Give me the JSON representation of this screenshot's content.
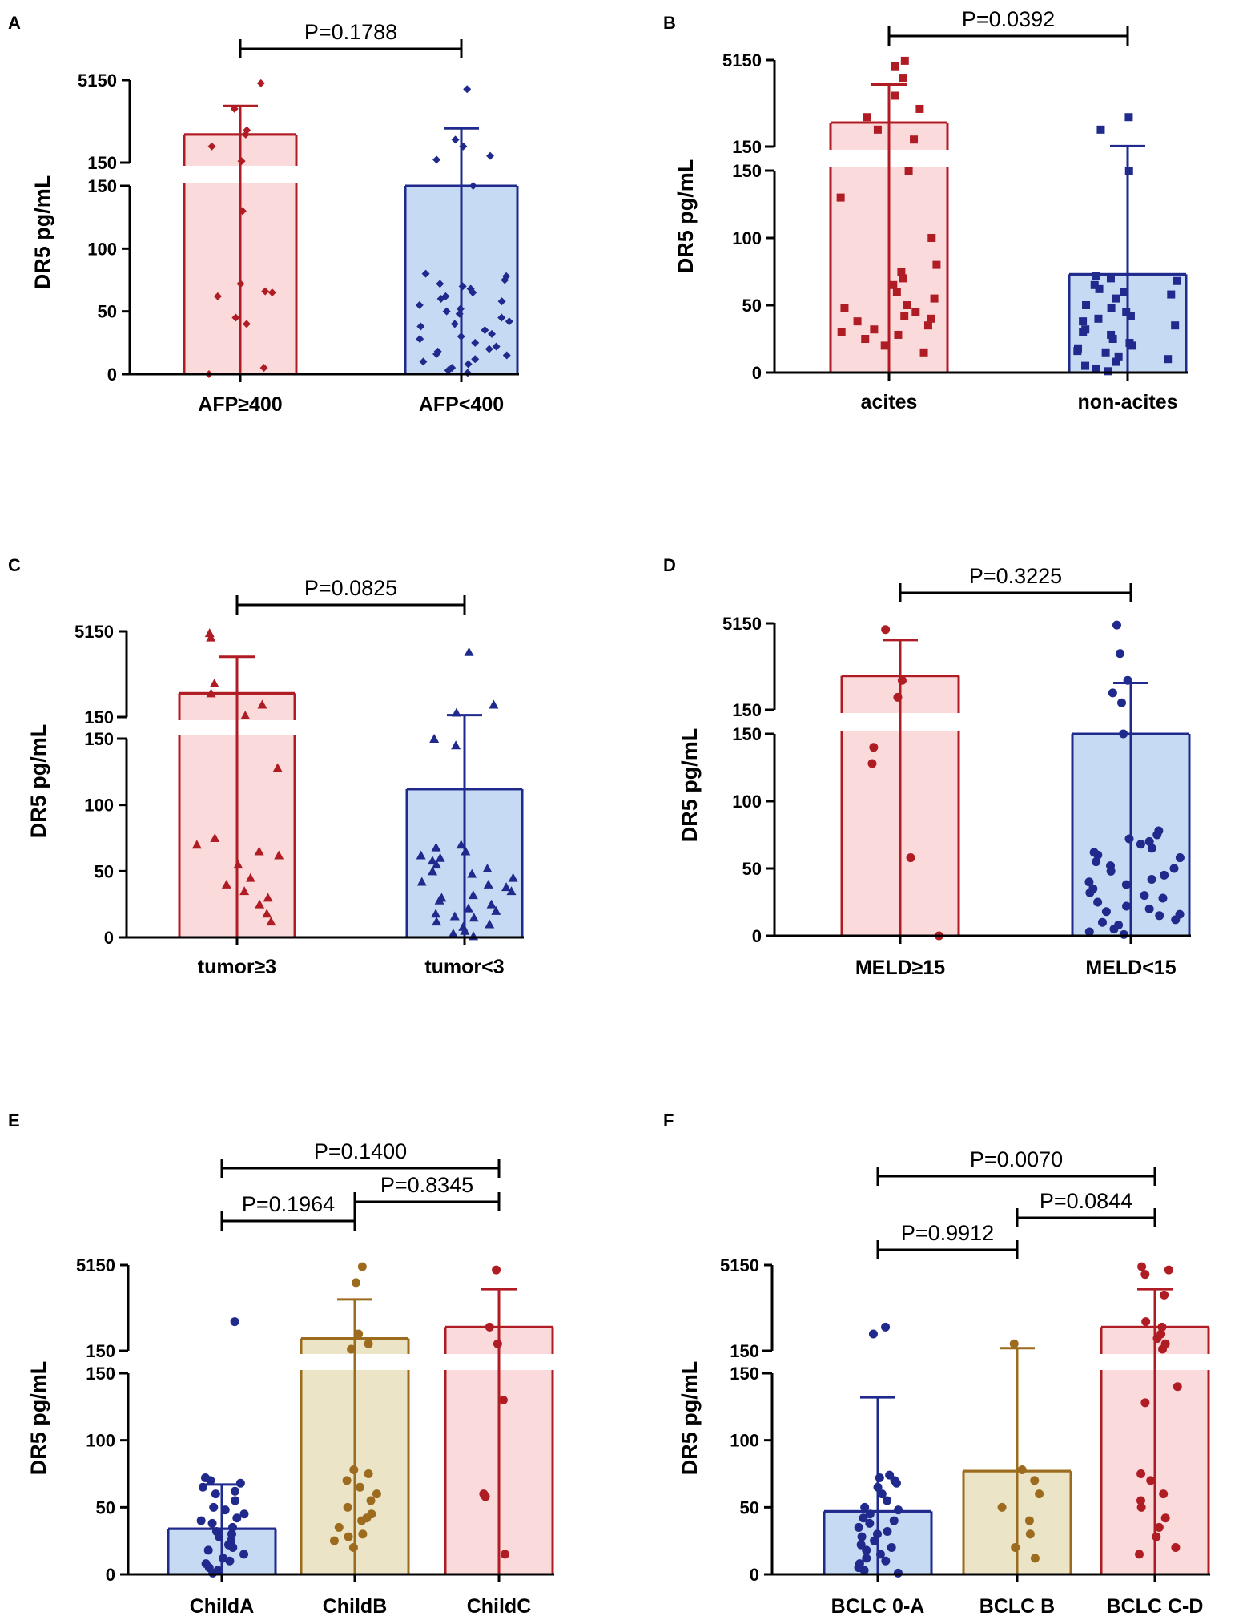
{
  "figure": {
    "y_label": "DR5 pg/mL"
  },
  "chart_data": [
    {
      "panel": "A",
      "type": "bar",
      "title": "",
      "xlabel": "",
      "ylabel": "DR5 pg/mL",
      "ylim_lower": [
        0,
        150
      ],
      "ylim_upper": [
        150,
        5150
      ],
      "y_ticks_lower": [
        "0",
        "50",
        "100",
        "150"
      ],
      "y_ticks_upper": [
        "150",
        "5150"
      ],
      "marker": "diamond",
      "categories": [
        "AFP≥400",
        "AFP<400"
      ],
      "colors": [
        "#b01c24",
        "#1f2a8c"
      ],
      "fills": [
        "#fbdadc",
        "#c6daf4"
      ],
      "means": [
        500,
        150
      ],
      "errors": [
        1200,
        500
      ],
      "points": [
        [
          0,
          5,
          40,
          45,
          62,
          65,
          66,
          72,
          130,
          160,
          300,
          500,
          600,
          1500,
          4500
        ],
        [
          1,
          3,
          5,
          8,
          10,
          12,
          15,
          16,
          18,
          20,
          22,
          25,
          28,
          30,
          32,
          35,
          38,
          40,
          42,
          45,
          48,
          50,
          52,
          55,
          58,
          60,
          62,
          65,
          68,
          70,
          72,
          75,
          78,
          80,
          150,
          170,
          200,
          300,
          400,
          3500
        ]
      ],
      "comparisons": [
        {
          "label": "P=0.1788",
          "from": 0,
          "to": 1
        }
      ]
    },
    {
      "panel": "B",
      "type": "bar",
      "title": "",
      "xlabel": "",
      "ylabel": "DR5 pg/mL",
      "ylim_lower": [
        0,
        150
      ],
      "ylim_upper": [
        150,
        5150
      ],
      "y_ticks_lower": [
        "0",
        "50",
        "100",
        "150"
      ],
      "y_ticks_upper": [
        "150",
        "5150"
      ],
      "marker": "square",
      "categories": [
        "acites",
        "non-acites"
      ],
      "colors": [
        "#b01c24",
        "#1f2a8c"
      ],
      "fills": [
        "#fbdadc",
        "#c6daf4"
      ],
      "means": [
        400,
        73
      ],
      "errors": [
        1500,
        80
      ],
      "points": [
        [
          15,
          20,
          25,
          28,
          30,
          32,
          35,
          38,
          40,
          42,
          45,
          48,
          50,
          55,
          60,
          65,
          70,
          75,
          80,
          100,
          130,
          150,
          200,
          300,
          500,
          700,
          1200,
          2500,
          4000,
          5000
        ],
        [
          1,
          3,
          5,
          8,
          10,
          12,
          15,
          16,
          18,
          20,
          22,
          25,
          28,
          30,
          32,
          35,
          38,
          40,
          42,
          45,
          48,
          50,
          55,
          58,
          60,
          62,
          65,
          68,
          70,
          72,
          150,
          300,
          500
        ]
      ],
      "comparisons": [
        {
          "label": "P=0.0392",
          "from": 0,
          "to": 1
        }
      ]
    },
    {
      "panel": "C",
      "type": "bar",
      "title": "",
      "xlabel": "",
      "ylabel": "DR5 pg/mL",
      "ylim_lower": [
        0,
        150
      ],
      "ylim_upper": [
        150,
        5150
      ],
      "y_ticks_lower": [
        "0",
        "50",
        "100",
        "150"
      ],
      "y_ticks_upper": [
        "150",
        "5150"
      ],
      "marker": "triangle",
      "categories": [
        "tumor≥3",
        "tumor<3"
      ],
      "colors": [
        "#b01c24",
        "#1f2a8c"
      ],
      "fills": [
        "#fbdadc",
        "#c6daf4"
      ],
      "means": [
        400,
        112
      ],
      "errors": [
        1400,
        50
      ],
      "points": [
        [
          12,
          18,
          25,
          30,
          35,
          40,
          45,
          55,
          62,
          65,
          70,
          75,
          128,
          160,
          250,
          400,
          600,
          4000,
          4800
        ],
        [
          1,
          3,
          5,
          8,
          10,
          12,
          15,
          16,
          18,
          20,
          22,
          25,
          28,
          30,
          32,
          35,
          38,
          40,
          42,
          45,
          48,
          50,
          52,
          55,
          58,
          60,
          62,
          65,
          68,
          70,
          145,
          150,
          180,
          250,
          2200
        ]
      ],
      "comparisons": [
        {
          "label": "P=0.0825",
          "from": 0,
          "to": 1
        }
      ]
    },
    {
      "panel": "D",
      "type": "bar",
      "title": "",
      "xlabel": "",
      "ylabel": "DR5 pg/mL",
      "ylim_lower": [
        0,
        150
      ],
      "ylim_upper": [
        150,
        5150
      ],
      "y_ticks_lower": [
        "0",
        "50",
        "100",
        "150"
      ],
      "y_ticks_upper": [
        "150",
        "5150"
      ],
      "marker": "circle",
      "categories": [
        "MELD≥15",
        "MELD<15"
      ],
      "colors": [
        "#b01c24",
        "#1f2a8c"
      ],
      "fills": [
        "#fbdadc",
        "#c6daf4"
      ],
      "means": [
        600,
        150
      ],
      "errors": [
        2000,
        300
      ],
      "points": [
        [
          0,
          58,
          128,
          140,
          250,
          500,
          4000
        ],
        [
          1,
          3,
          5,
          8,
          10,
          12,
          15,
          16,
          18,
          20,
          22,
          25,
          28,
          30,
          32,
          35,
          38,
          40,
          42,
          45,
          48,
          50,
          52,
          55,
          58,
          60,
          62,
          65,
          68,
          70,
          72,
          75,
          78,
          150,
          200,
          300,
          500,
          1500,
          4800
        ]
      ],
      "comparisons": [
        {
          "label": "P=0.3225",
          "from": 0,
          "to": 1
        }
      ]
    },
    {
      "panel": "E",
      "type": "bar",
      "title": "",
      "xlabel": "",
      "ylabel": "DR5 pg/mL",
      "ylim_lower": [
        0,
        150
      ],
      "ylim_upper": [
        150,
        5150
      ],
      "y_ticks_lower": [
        "0",
        "50",
        "100",
        "150"
      ],
      "y_ticks_upper": [
        "150",
        "5150"
      ],
      "marker": "circle",
      "categories": [
        "ChildA",
        "ChildB",
        "ChildC"
      ],
      "colors": [
        "#1f2a8c",
        "#9c6b1e",
        "#b01c24"
      ],
      "fills": [
        "#c6daf4",
        "#ece4c6",
        "#fbdadc"
      ],
      "means": [
        34,
        250,
        400
      ],
      "errors": [
        33,
        1000,
        1500
      ],
      "points": [
        [
          1,
          3,
          5,
          8,
          10,
          12,
          15,
          18,
          20,
          22,
          25,
          28,
          30,
          32,
          35,
          38,
          40,
          42,
          45,
          48,
          50,
          55,
          60,
          62,
          65,
          68,
          70,
          72,
          500
        ],
        [
          20,
          25,
          28,
          30,
          35,
          40,
          42,
          45,
          50,
          55,
          60,
          65,
          70,
          75,
          78,
          160,
          200,
          300,
          2500,
          4800
        ],
        [
          15,
          58,
          60,
          130,
          200,
          400,
          4200
        ]
      ],
      "comparisons": [
        {
          "label": "P=0.1400",
          "from": 0,
          "to": 2
        },
        {
          "label": "P=0.1964",
          "from": 0,
          "to": 1
        },
        {
          "label": "P=0.8345",
          "from": 1,
          "to": 2
        }
      ]
    },
    {
      "panel": "F",
      "type": "bar",
      "title": "",
      "xlabel": "",
      "ylabel": "DR5 pg/mL",
      "ylim_lower": [
        0,
        150
      ],
      "ylim_upper": [
        150,
        5150
      ],
      "y_ticks_lower": [
        "0",
        "50",
        "100",
        "150"
      ],
      "y_ticks_upper": [
        "150",
        "5150"
      ],
      "marker": "circle",
      "categories": [
        "BCLC 0-A",
        "BCLC B",
        "BCLC C-D"
      ],
      "colors": [
        "#1f2a8c",
        "#9c6b1e",
        "#b01c24"
      ],
      "fills": [
        "#c6daf4",
        "#ece4c6",
        "#fbdadc"
      ],
      "means": [
        47,
        77,
        400
      ],
      "errors": [
        85,
        90,
        1500
      ],
      "points": [
        [
          1,
          3,
          5,
          8,
          10,
          12,
          15,
          18,
          20,
          22,
          25,
          28,
          30,
          32,
          35,
          38,
          40,
          42,
          45,
          48,
          50,
          55,
          60,
          65,
          68,
          70,
          72,
          74,
          300,
          400
        ],
        [
          12,
          20,
          30,
          40,
          50,
          60,
          70,
          78,
          200
        ],
        [
          15,
          20,
          28,
          35,
          42,
          50,
          55,
          60,
          70,
          75,
          128,
          140,
          160,
          200,
          250,
          300,
          400,
          500,
          1500,
          3500,
          4200,
          4800
        ]
      ],
      "comparisons": [
        {
          "label": "P=0.0070",
          "from": 0,
          "to": 2
        },
        {
          "label": "P=0.0844",
          "from": 1,
          "to": 2
        },
        {
          "label": "P=0.9912",
          "from": 0,
          "to": 1
        }
      ]
    }
  ]
}
